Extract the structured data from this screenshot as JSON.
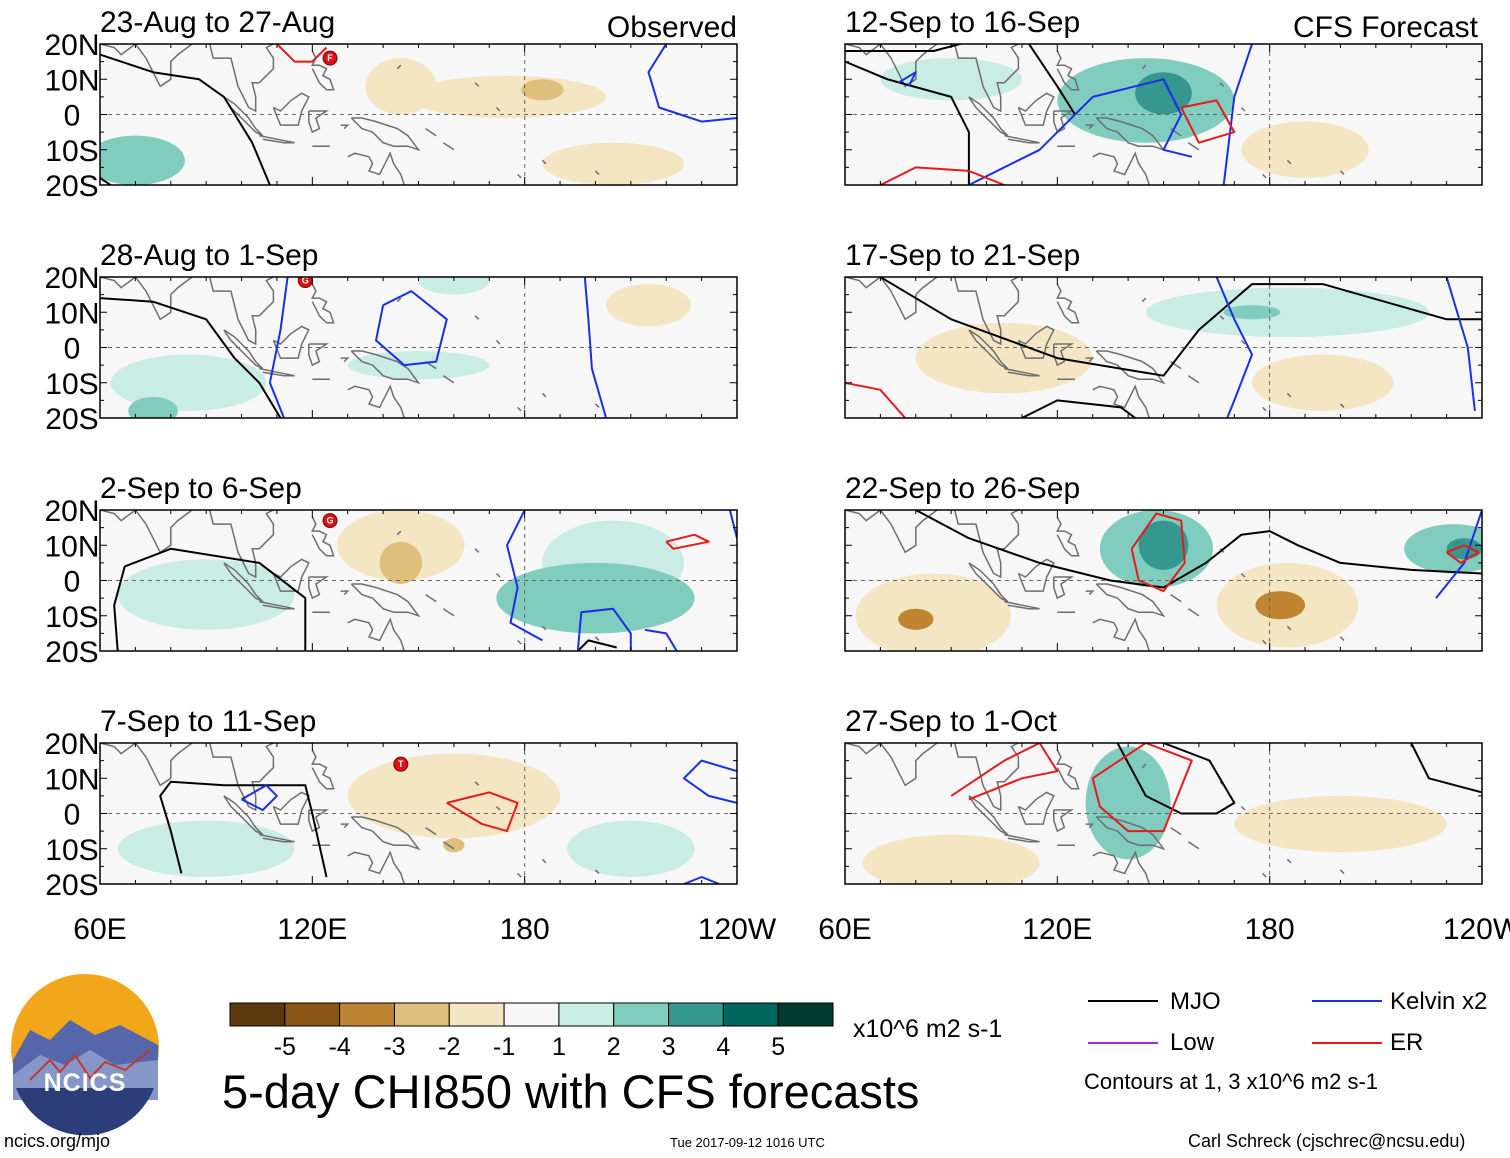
{
  "colors": {
    "mjo": "#000000",
    "kelvin": "#1a2ee6",
    "low": "#9b30d9",
    "er": "#e61a1a",
    "coast": "#6e6e6e",
    "scale": [
      "#5c3a0e",
      "#8b5513",
      "#c08532",
      "#dfbf7c",
      "#f4e6c2",
      "#f7f7f7",
      "#c9ece4",
      "#80cdc0",
      "#35978f",
      "#01665e",
      "#003c30"
    ]
  },
  "header": {
    "observed_label": "Observed",
    "forecast_label": "CFS Forecast"
  },
  "chart_data": {
    "type": "heatmap",
    "title": "5-day CHI850 with CFS forecasts",
    "variable": "CHI850",
    "units": "x10^6 m2 s-1",
    "xlim": [
      "60E",
      "120W"
    ],
    "ylim": [
      "20S",
      "20N"
    ],
    "x_ticks": [
      "60E",
      "120E",
      "180",
      "120W"
    ],
    "y_ticks": [
      "20N",
      "10N",
      "0",
      "10S",
      "20S"
    ],
    "colorbar": {
      "ticks": [
        "-5",
        "-4",
        "-3",
        "-2",
        "-1",
        "1",
        "2",
        "3",
        "4",
        "5"
      ],
      "units_label": "x10^6 m2 s-1",
      "n_bins": 11
    },
    "contour_legend": {
      "mjo": "MJO",
      "kelvin": "Kelvin x2",
      "low": "Low",
      "er": "ER",
      "note": "Contours at 1, 3 x10^6 m2 s-1"
    },
    "panels": [
      {
        "title": "23-Aug to 27-Aug",
        "kind": "observed",
        "storm_markers": [
          {
            "lon": 125,
            "lat": 16,
            "letter": "F"
          }
        ],
        "blobs": [
          {
            "lon": 175,
            "lat": 5,
            "rx": 28,
            "ry": 6,
            "v": -2
          },
          {
            "lon": 185,
            "lat": 7,
            "rx": 6,
            "ry": 3,
            "v": -3
          },
          {
            "lon": 70,
            "lat": -13,
            "rx": 14,
            "ry": 7,
            "v": 2
          },
          {
            "lon": 145,
            "lat": 8,
            "rx": 10,
            "ry": 8,
            "v": -1.5
          },
          {
            "lon": 205,
            "lat": -14,
            "rx": 20,
            "ry": 6,
            "v": -1.5
          }
        ]
      },
      {
        "title": "28-Aug to 1-Sep",
        "kind": "observed",
        "storm_markers": [
          {
            "lon": 118,
            "lat": 19,
            "letter": "G"
          }
        ],
        "blobs": [
          {
            "lon": 85,
            "lat": -10,
            "rx": 22,
            "ry": 8,
            "v": 1.5
          },
          {
            "lon": 75,
            "lat": -18,
            "rx": 7,
            "ry": 4,
            "v": 2.5
          },
          {
            "lon": 150,
            "lat": -5,
            "rx": 20,
            "ry": 4,
            "v": 1.5
          },
          {
            "lon": 215,
            "lat": 12,
            "rx": 12,
            "ry": 6,
            "v": -1.5
          },
          {
            "lon": 160,
            "lat": 19,
            "rx": 10,
            "ry": 4,
            "v": 1.5
          }
        ]
      },
      {
        "title": "2-Sep to 6-Sep",
        "kind": "observed",
        "storm_markers": [
          {
            "lon": 125,
            "lat": 17,
            "letter": "G"
          }
        ],
        "blobs": [
          {
            "lon": 145,
            "lat": 10,
            "rx": 18,
            "ry": 10,
            "v": -2
          },
          {
            "lon": 145,
            "lat": 5,
            "rx": 6,
            "ry": 6,
            "v": -3
          },
          {
            "lon": 200,
            "lat": -5,
            "rx": 28,
            "ry": 10,
            "v": 2
          },
          {
            "lon": 90,
            "lat": -4,
            "rx": 25,
            "ry": 10,
            "v": 1.5
          },
          {
            "lon": 205,
            "lat": 5,
            "rx": 20,
            "ry": 12,
            "v": 1.2
          }
        ]
      },
      {
        "title": "7-Sep to 11-Sep",
        "kind": "observed",
        "storm_markers": [
          {
            "lon": 145,
            "lat": 14,
            "letter": "T"
          }
        ],
        "blobs": [
          {
            "lon": 160,
            "lat": 5,
            "rx": 30,
            "ry": 12,
            "v": -1.5
          },
          {
            "lon": 90,
            "lat": -10,
            "rx": 25,
            "ry": 8,
            "v": 1.5
          },
          {
            "lon": 210,
            "lat": -10,
            "rx": 18,
            "ry": 8,
            "v": 1.5
          },
          {
            "lon": 160,
            "lat": -9,
            "rx": 3,
            "ry": 2,
            "v": -3
          }
        ]
      },
      {
        "title": "12-Sep to 16-Sep",
        "kind": "forecast",
        "blobs": [
          {
            "lon": 145,
            "lat": 4,
            "rx": 25,
            "ry": 12,
            "v": 2
          },
          {
            "lon": 150,
            "lat": 6,
            "rx": 8,
            "ry": 6,
            "v": 3
          },
          {
            "lon": 190,
            "lat": -10,
            "rx": 18,
            "ry": 8,
            "v": -2
          },
          {
            "lon": 90,
            "lat": 10,
            "rx": 20,
            "ry": 6,
            "v": 1.5
          }
        ]
      },
      {
        "title": "17-Sep to 21-Sep",
        "kind": "forecast",
        "blobs": [
          {
            "lon": 105,
            "lat": -3,
            "rx": 25,
            "ry": 10,
            "v": -1.5
          },
          {
            "lon": 195,
            "lat": -10,
            "rx": 20,
            "ry": 8,
            "v": -1.5
          },
          {
            "lon": 185,
            "lat": 10,
            "rx": 40,
            "ry": 7,
            "v": 1.5
          },
          {
            "lon": 175,
            "lat": 10,
            "rx": 8,
            "ry": 2,
            "v": 2.2
          }
        ]
      },
      {
        "title": "22-Sep to 26-Sep",
        "kind": "forecast",
        "blobs": [
          {
            "lon": 85,
            "lat": -10,
            "rx": 22,
            "ry": 12,
            "v": -2
          },
          {
            "lon": 80,
            "lat": -11,
            "rx": 5,
            "ry": 3,
            "v": -3.5
          },
          {
            "lon": 185,
            "lat": -7,
            "rx": 20,
            "ry": 12,
            "v": -2
          },
          {
            "lon": 183,
            "lat": -7,
            "rx": 7,
            "ry": 4,
            "v": -3.5
          },
          {
            "lon": 148,
            "lat": 9,
            "rx": 16,
            "ry": 11,
            "v": 2
          },
          {
            "lon": 150,
            "lat": 10,
            "rx": 7,
            "ry": 7,
            "v": 3.5
          },
          {
            "lon": 232,
            "lat": 9,
            "rx": 14,
            "ry": 7,
            "v": 2
          },
          {
            "lon": 235,
            "lat": 9,
            "rx": 5,
            "ry": 3,
            "v": 3.5
          }
        ]
      },
      {
        "title": "27-Sep to 1-Oct",
        "kind": "forecast",
        "blobs": [
          {
            "lon": 90,
            "lat": -14,
            "rx": 25,
            "ry": 8,
            "v": -2
          },
          {
            "lon": 140,
            "lat": 3,
            "rx": 12,
            "ry": 16,
            "v": 2
          },
          {
            "lon": 142,
            "lat": 8,
            "rx": 6,
            "ry": 8,
            "v": 2.8
          },
          {
            "lon": 200,
            "lat": -3,
            "rx": 30,
            "ry": 8,
            "v": -1.2
          }
        ]
      }
    ]
  },
  "branding": {
    "logo_text": "NCICS",
    "url": "ncics.org/mjo",
    "timestamp": "Tue 2017-09-12 1016 UTC",
    "credit": "Carl Schreck (cjschrec@ncsu.edu)"
  }
}
